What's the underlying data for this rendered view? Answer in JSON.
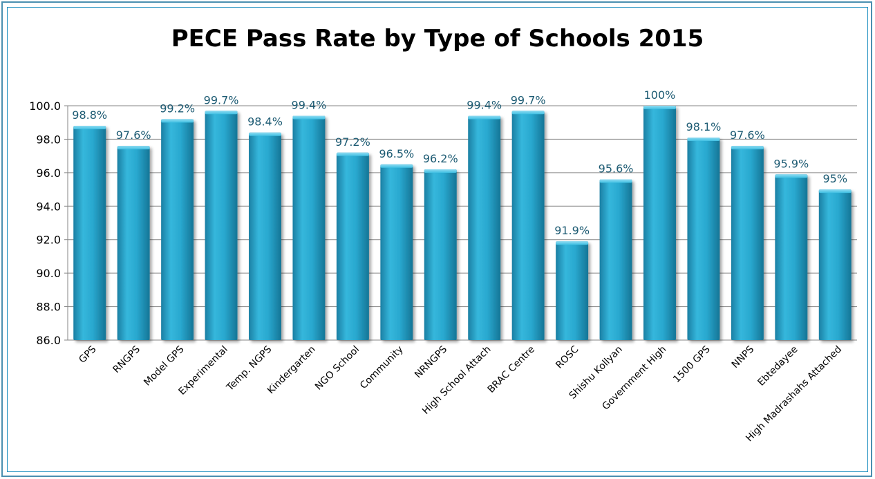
{
  "chart_data": {
    "type": "bar",
    "title": "PECE Pass Rate by Type of Schools 2015",
    "xlabel": "",
    "ylabel": "",
    "ylim": [
      86.0,
      100.0
    ],
    "y_ticks": [
      "86.0",
      "88.0",
      "90.0",
      "92.0",
      "94.0",
      "96.0",
      "98.0",
      "100.0"
    ],
    "grid": true,
    "legend": "none",
    "bar_color": "#29a8cf",
    "categories": [
      "GPS",
      "RNGPS",
      "Model GPS",
      "Experimental",
      "Temp. NGPS",
      "Kindergarten",
      "NGO School",
      "Community",
      "NRNGPS",
      "High School Attach",
      "BRAC Centre",
      "ROSC",
      "Shishu Kollyan",
      "Government High",
      "1500 GPS",
      "NNPS",
      "Ebtedayee",
      "High Madrashahs Attached"
    ],
    "values": [
      98.8,
      97.6,
      99.2,
      99.7,
      98.4,
      99.4,
      97.2,
      96.5,
      96.2,
      99.4,
      99.7,
      91.9,
      95.6,
      100,
      98.1,
      97.6,
      95.9,
      95
    ],
    "data_labels": [
      "98.8%",
      "97.6%",
      "99.2%",
      "99.7%",
      "98.4%",
      "99.4%",
      "97.2%",
      "96.5%",
      "96.2%",
      "99.4%",
      "99.7%",
      "91.9%",
      "95.6%",
      "100%",
      "98.1%",
      "97.6%",
      "95.9%",
      "95%"
    ]
  }
}
